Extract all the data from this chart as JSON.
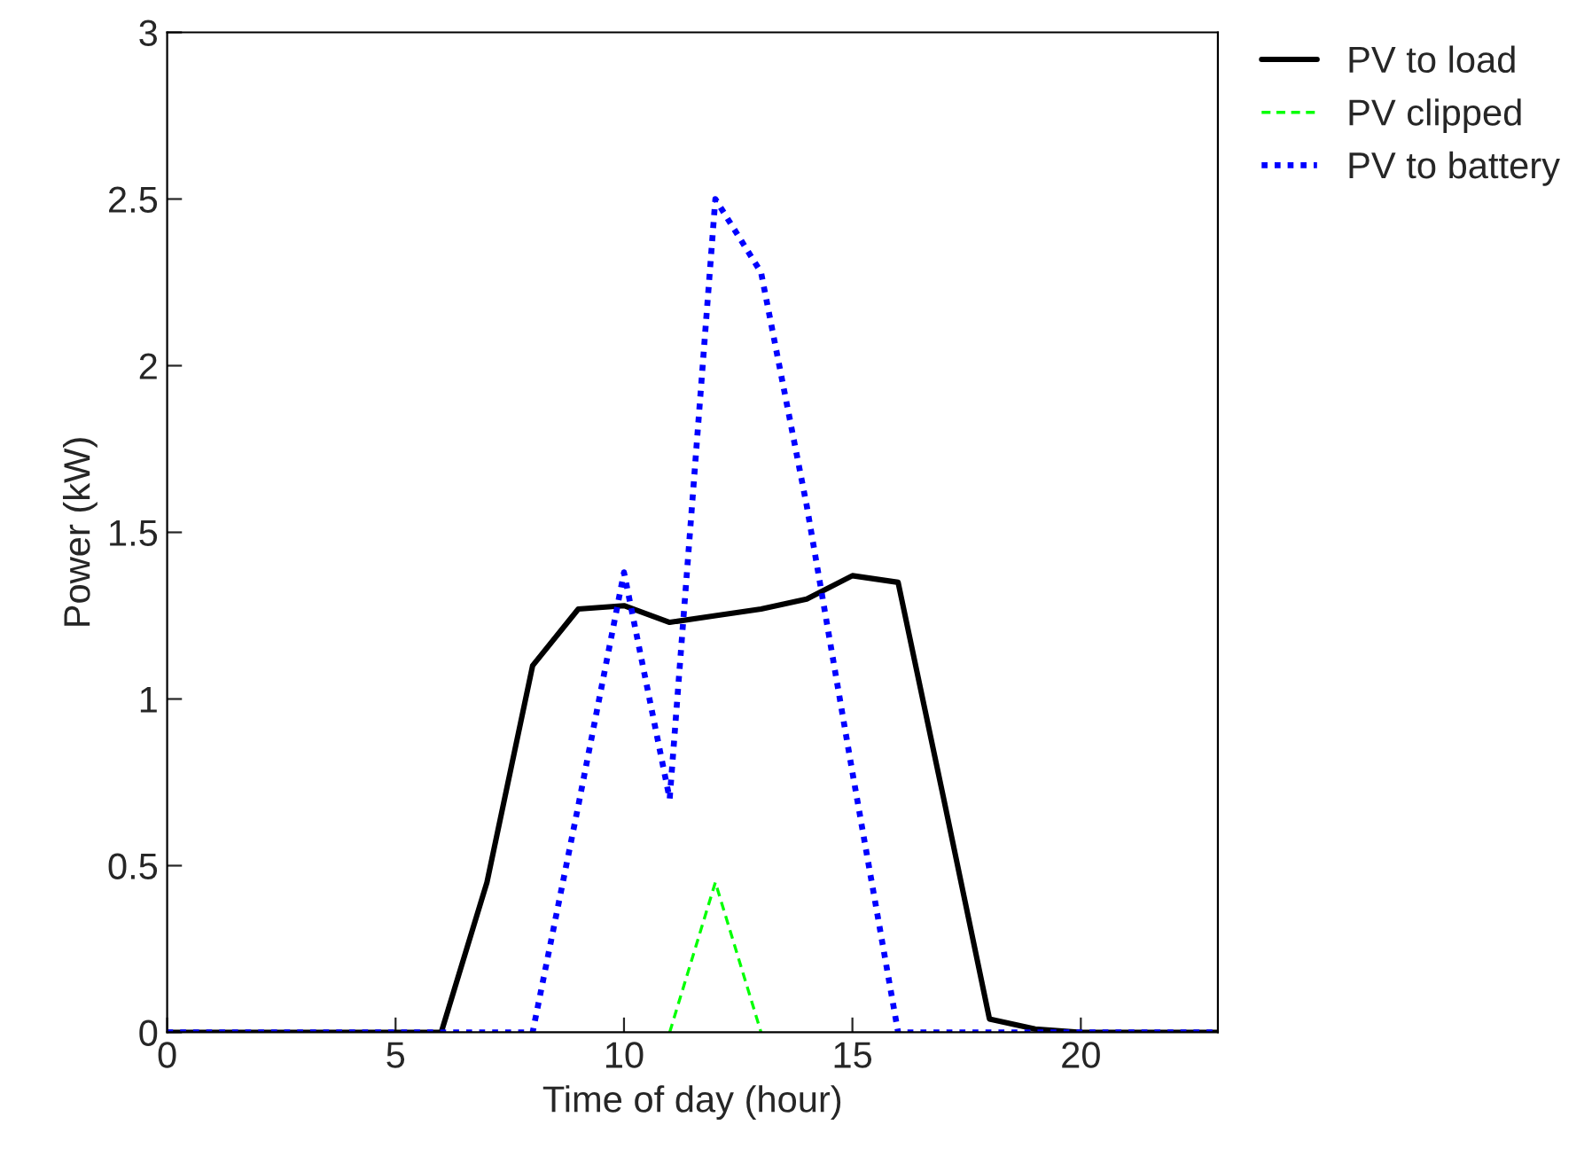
{
  "chart_data": {
    "type": "line",
    "xlabel": "Time of day (hour)",
    "ylabel": "Power (kW)",
    "x": [
      0,
      1,
      2,
      3,
      4,
      5,
      6,
      7,
      8,
      9,
      10,
      11,
      12,
      13,
      14,
      15,
      16,
      17,
      18,
      19,
      20,
      21,
      22,
      23
    ],
    "series": [
      {
        "name": "PV to load",
        "color": "#000000",
        "line_style": "solid",
        "values": [
          0,
          0,
          0,
          0,
          0,
          0,
          0,
          0.45,
          1.1,
          1.27,
          1.28,
          1.23,
          1.25,
          1.27,
          1.3,
          1.37,
          1.35,
          0.7,
          0.04,
          0.01,
          0,
          0,
          0,
          0
        ]
      },
      {
        "name": "PV clipped",
        "color": "#00ff00",
        "line_style": "dashed",
        "values": [
          null,
          null,
          null,
          null,
          null,
          null,
          null,
          null,
          null,
          null,
          null,
          0,
          0.45,
          0,
          null,
          null,
          null,
          null,
          null,
          null,
          null,
          null,
          null,
          null
        ]
      },
      {
        "name": "PV to battery",
        "color": "#0000ff",
        "line_style": "dotted",
        "values": [
          0,
          0,
          0,
          0,
          0,
          0,
          0,
          0,
          0,
          0.68,
          1.38,
          0.7,
          2.5,
          2.28,
          1.58,
          0.78,
          0,
          0,
          0,
          0,
          0,
          0,
          0,
          0
        ]
      }
    ],
    "xlim": [
      0,
      23
    ],
    "xticks": [
      0,
      5,
      10,
      15,
      20
    ],
    "ylim": [
      0,
      3
    ],
    "yticks": [
      0,
      0.5,
      1,
      1.5,
      2,
      2.5,
      3
    ],
    "grid": false,
    "legend": "top right",
    "marker": "none"
  }
}
